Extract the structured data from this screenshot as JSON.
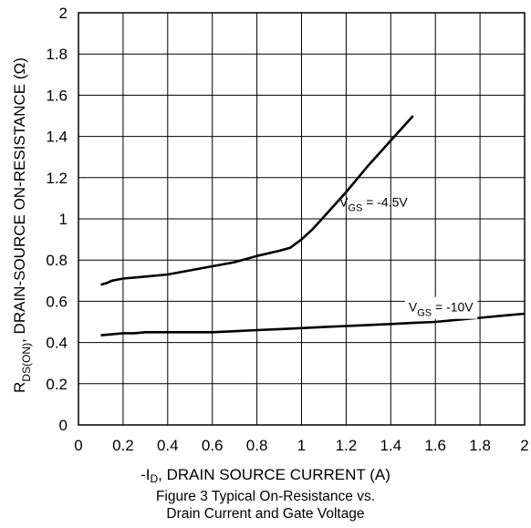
{
  "chart_data": {
    "type": "line",
    "xlim": [
      0,
      2
    ],
    "ylim": [
      0,
      2
    ],
    "x_ticks": [
      "0",
      "0.2",
      "0.4",
      "0.6",
      "0.8",
      "1",
      "1.2",
      "1.4",
      "1.6",
      "1.8",
      "2"
    ],
    "y_ticks": [
      "0",
      "0.2",
      "0.4",
      "0.6",
      "0.8",
      "1",
      "1.2",
      "1.4",
      "1.6",
      "1.8",
      "2"
    ],
    "grid": true,
    "xlabel": {
      "prefix": "-I",
      "sub": "D",
      "rest": ", DRAIN SOURCE CURRENT (A)"
    },
    "ylabel": {
      "prefix": "R",
      "sub": "DS(ON)",
      "rest": ", DRAIN-SOURCE ON-RESISTANCE (Ω)"
    },
    "caption": [
      "Figure 3 Typical On-Resistance vs.",
      "Drain Current and Gate Voltage"
    ],
    "series": [
      {
        "label_main": "V",
        "label_sub": "GS",
        "label_rest": " = -4.5V",
        "x": [
          0.1,
          0.13,
          0.15,
          0.2,
          0.3,
          0.4,
          0.5,
          0.6,
          0.7,
          0.8,
          0.9,
          0.95,
          1.0,
          1.05,
          1.1,
          1.2,
          1.3,
          1.4,
          1.5
        ],
        "y": [
          0.68,
          0.69,
          0.7,
          0.71,
          0.72,
          0.73,
          0.75,
          0.77,
          0.79,
          0.82,
          0.845,
          0.86,
          0.9,
          0.95,
          1.01,
          1.13,
          1.26,
          1.38,
          1.5
        ]
      },
      {
        "label_main": "V",
        "label_sub": "GS",
        "label_rest": " = -10V",
        "x": [
          0.1,
          0.15,
          0.2,
          0.25,
          0.3,
          0.4,
          0.5,
          0.6,
          0.7,
          0.8,
          0.9,
          1.0,
          1.1,
          1.2,
          1.3,
          1.4,
          1.5,
          1.6,
          1.7,
          1.8,
          1.9,
          2.0
        ],
        "y": [
          0.435,
          0.44,
          0.445,
          0.445,
          0.45,
          0.45,
          0.45,
          0.45,
          0.455,
          0.46,
          0.465,
          0.47,
          0.475,
          0.48,
          0.485,
          0.49,
          0.495,
          0.5,
          0.51,
          0.52,
          0.53,
          0.54
        ]
      }
    ]
  }
}
